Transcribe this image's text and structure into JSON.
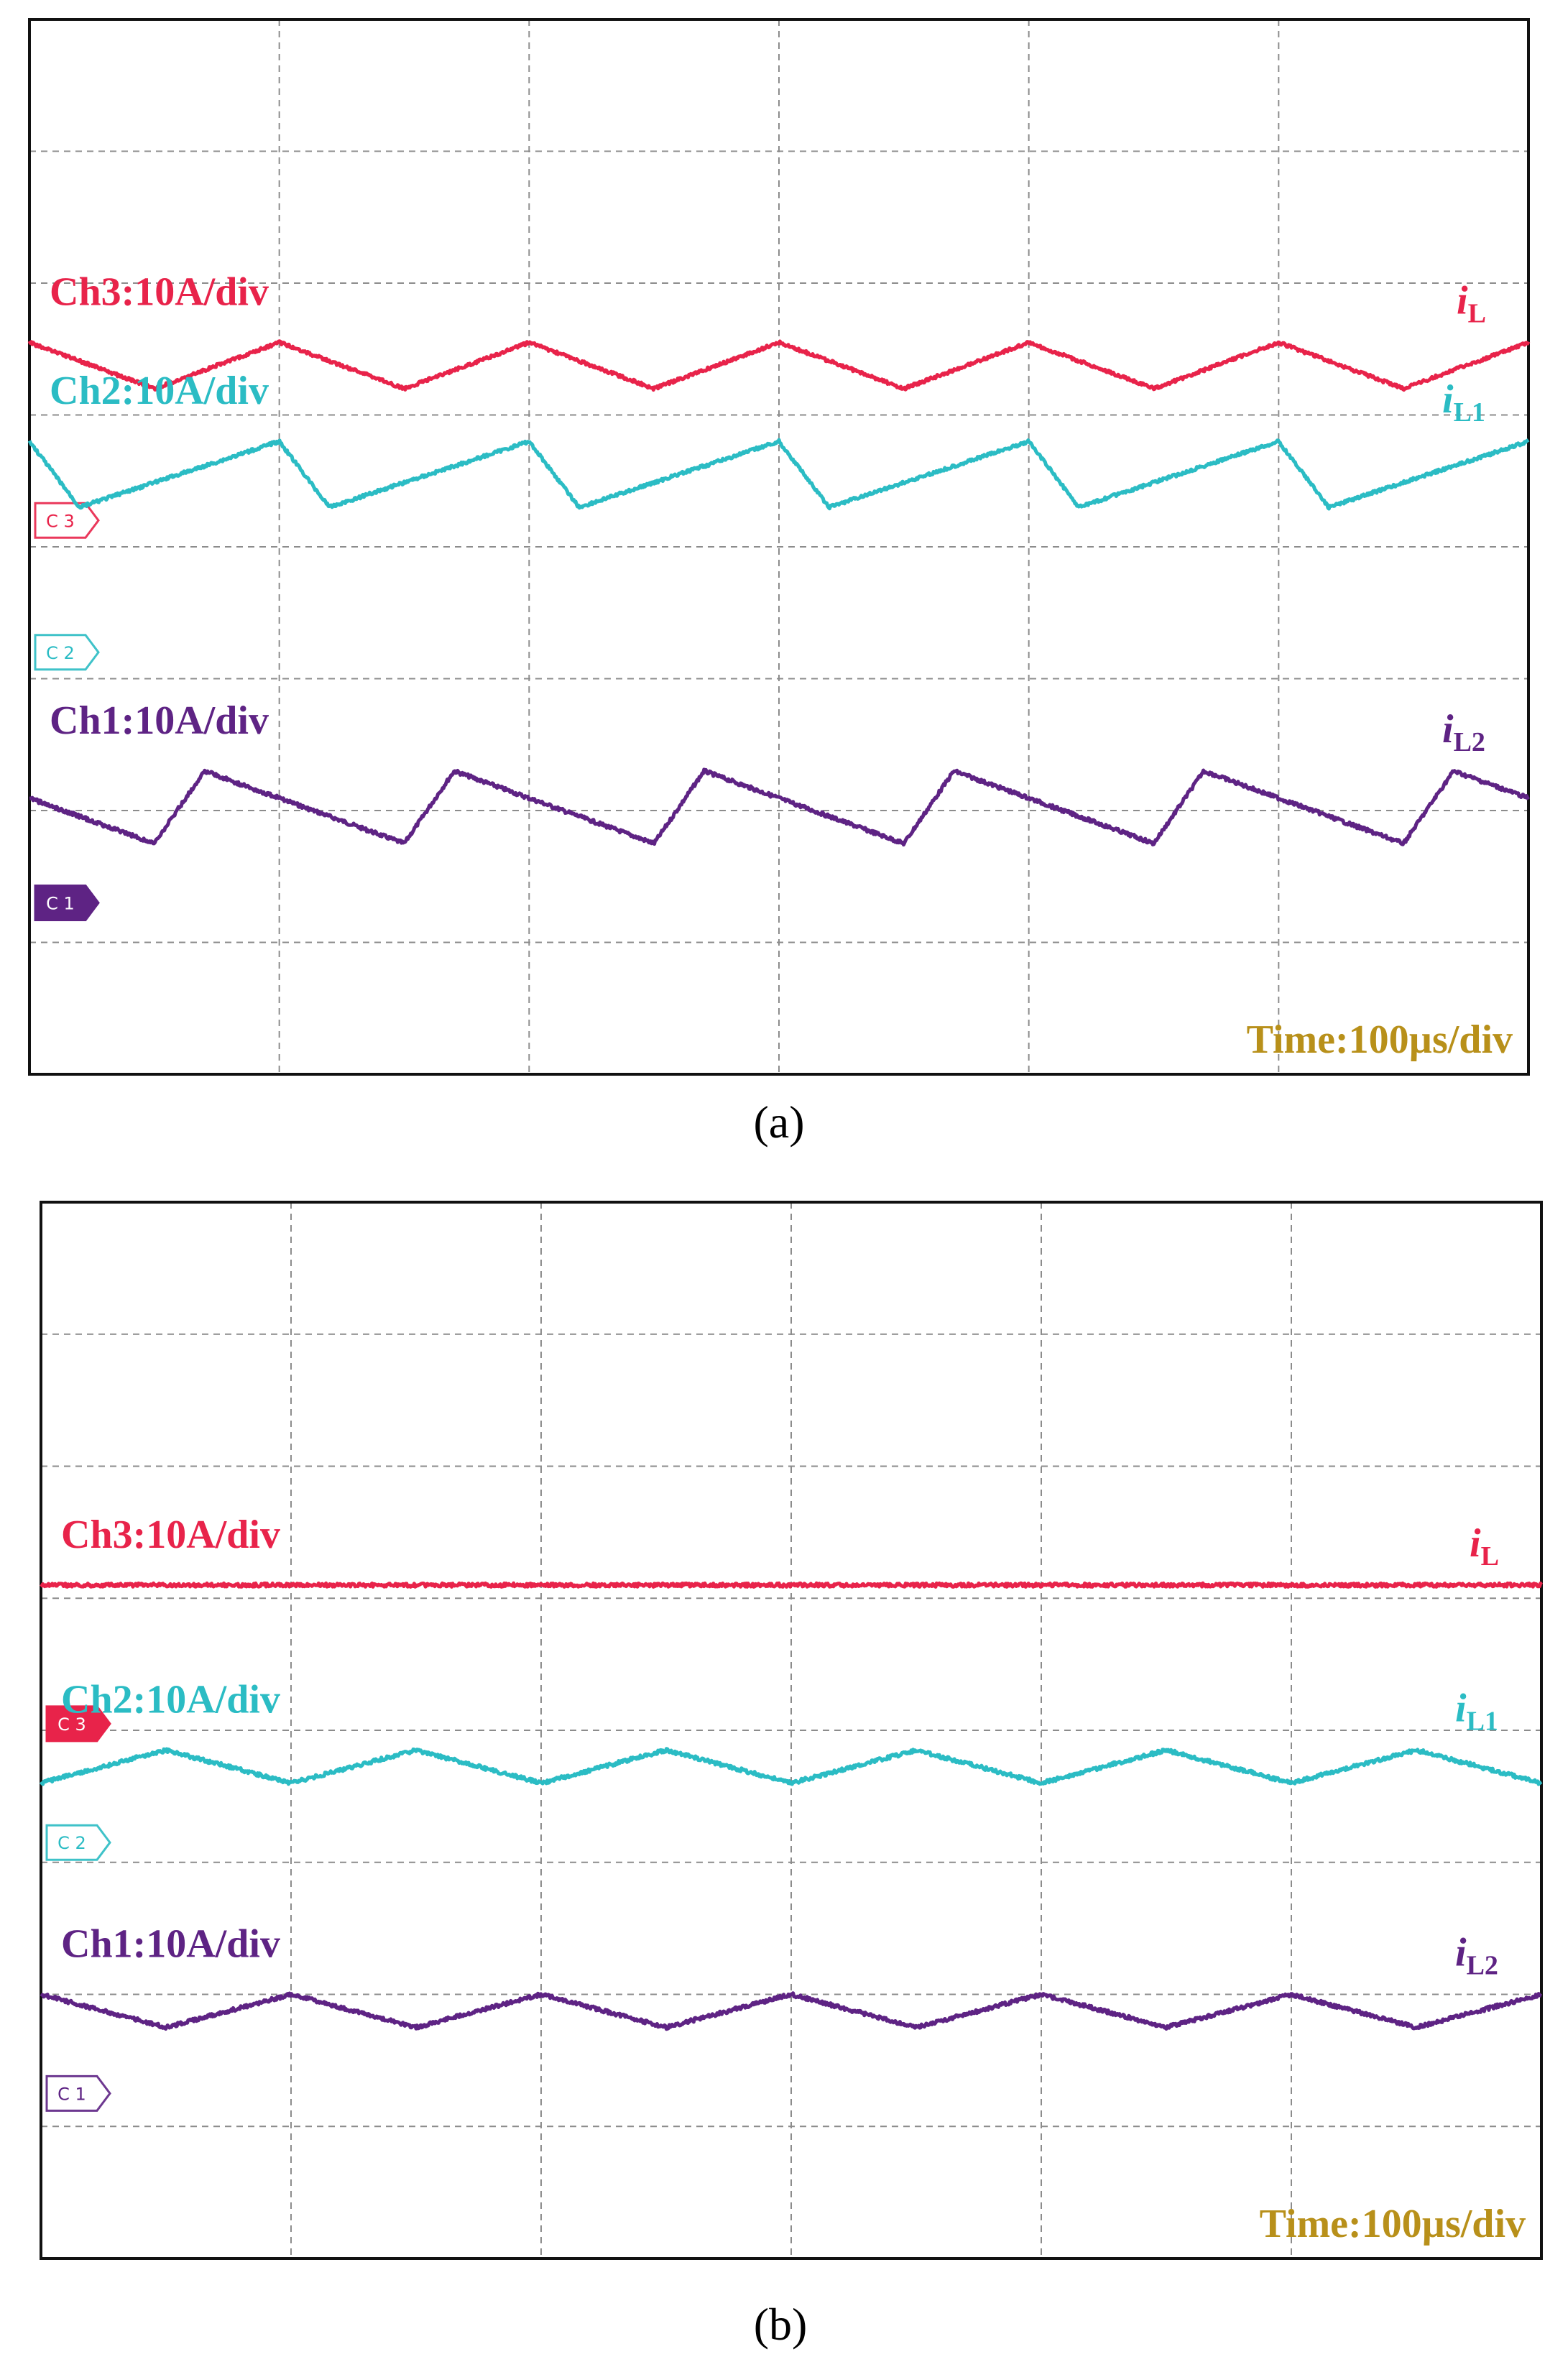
{
  "colors": {
    "ch3": "#e8234a",
    "ch2": "#2bbcc4",
    "ch1": "#5e2384",
    "time": "#b8901a",
    "grid": "#8c8c8c"
  },
  "chart_data": [
    {
      "type": "line",
      "panel_label": "(a)",
      "time_label": "Time:100µs/div",
      "grid": {
        "x_divisions": 6,
        "y_divisions": 8
      },
      "period_divisions": 1,
      "series": [
        {
          "name": "Ch3:10A/div",
          "trace_label": "i",
          "trace_sub": "L",
          "color_key": "ch3",
          "marker": "C3",
          "marker_div": 3.8,
          "marker_style": "outline",
          "shape": "triangle",
          "duty": 0.5,
          "phase": 0.0,
          "high_div": 2.8,
          "low_div": 2.45,
          "noise": 0.012
        },
        {
          "name": "Ch2:10A/div",
          "trace_label": "i",
          "trace_sub": "L1",
          "color_key": "ch2",
          "marker": "C2",
          "marker_div": 4.8,
          "marker_style": "outline",
          "shape": "sawtooth",
          "duty": 0.2,
          "phase": 0.0,
          "high_div": 3.7,
          "low_div": 3.2,
          "noise": 0.012
        },
        {
          "name": "Ch1:10A/div",
          "trace_label": "i",
          "trace_sub": "L2",
          "color_key": "ch1",
          "marker": "C1",
          "marker_div": 6.7,
          "marker_style": "filled",
          "shape": "sawtooth",
          "duty": 0.2,
          "phase": 0.5,
          "high_div": 5.7,
          "low_div": 6.25,
          "noise": 0.014
        }
      ]
    },
    {
      "type": "line",
      "panel_label": "(b)",
      "time_label": "Time:100µs/div",
      "grid": {
        "x_divisions": 6,
        "y_divisions": 8
      },
      "period_divisions": 1,
      "series": [
        {
          "name": "Ch3:10A/div",
          "trace_label": "i",
          "trace_sub": "L",
          "color_key": "ch3",
          "marker": "C3",
          "marker_div": 3.95,
          "marker_style": "filled",
          "shape": "flat",
          "duty": 0.5,
          "phase": 0.0,
          "high_div": 2.9,
          "low_div": 2.9,
          "noise": 0.014
        },
        {
          "name": "Ch2:10A/div",
          "trace_label": "i",
          "trace_sub": "L1",
          "color_key": "ch2",
          "marker": "C2",
          "marker_div": 4.85,
          "marker_style": "outline",
          "shape": "triangle",
          "duty": 0.5,
          "phase": 0.0,
          "high_div": 4.15,
          "low_div": 4.4,
          "noise": 0.014
        },
        {
          "name": "Ch1:10A/div",
          "trace_label": "i",
          "trace_sub": "L2",
          "color_key": "ch1",
          "marker": "C1",
          "marker_div": 6.75,
          "marker_style": "outline",
          "shape": "triangle",
          "duty": 0.5,
          "phase": 0.5,
          "high_div": 6.0,
          "low_div": 6.25,
          "noise": 0.014
        }
      ]
    }
  ]
}
